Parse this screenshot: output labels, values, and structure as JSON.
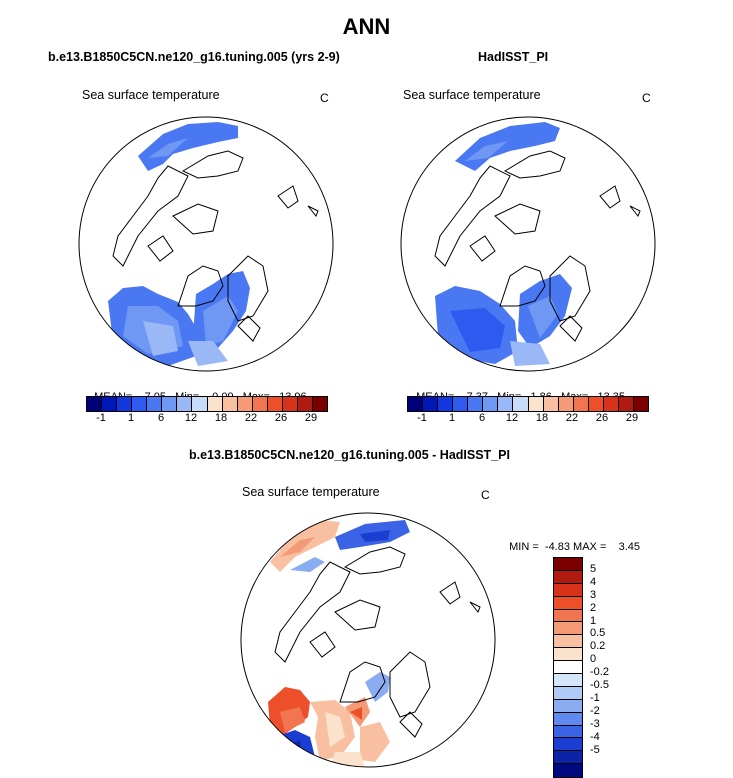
{
  "title": "ANN",
  "panels": [
    {
      "subtitle": "b.e13.B1850C5CN.ne120_g16.tuning.005 (yrs 2-9)",
      "field": "Sea surface temperature",
      "units": "C",
      "stats": {
        "mean_label": "MEAN=",
        "mean": "7.05",
        "min_label": "Min=",
        "min": "-0.09",
        "max_label": "Max=",
        "max": "13.96"
      }
    },
    {
      "subtitle": "HadISST_PI",
      "field": "Sea surface temperature",
      "units": "C",
      "stats": {
        "mean_label": "MEAN=",
        "mean": "7.37",
        "min_label": "Min=",
        "min": "1.86",
        "max_label": "Max=",
        "max": "13.35"
      }
    },
    {
      "subtitle": "b.e13.B1850C5CN.ne120_g16.tuning.005 - HadISST_PI",
      "field": "Sea surface temperature",
      "units": "C",
      "stats": {
        "min_label": "MIN =",
        "min": "-4.83",
        "max_label": "MAX =",
        "max": "3.45"
      }
    }
  ],
  "colorbar_abs": {
    "colors": [
      "#00007a",
      "#0018b8",
      "#1438e0",
      "#2f5af0",
      "#4a78f2",
      "#6f97f4",
      "#9ab8f6",
      "#c6dcf9",
      "#fbe2cc",
      "#f8c0a0",
      "#f59a76",
      "#f27552",
      "#ec4f2a",
      "#d8331a",
      "#b01a10",
      "#7a0000"
    ],
    "tick_labels": [
      "-1",
      "1",
      "6",
      "12",
      "18",
      "22",
      "26",
      "29"
    ]
  },
  "colorbar_diff": {
    "colors": [
      "#7a0000",
      "#b01a10",
      "#d8331a",
      "#ec4f2a",
      "#f27552",
      "#f59a76",
      "#f8c0a0",
      "#fbe2cc",
      "#ffffff",
      "#d6e6fa",
      "#b0cbf6",
      "#8aadf2",
      "#5f89ee",
      "#3a63e6",
      "#1c3ed0",
      "#0c22a8",
      "#000880"
    ],
    "tick_labels": [
      "5",
      "4",
      "3",
      "2",
      "1",
      "0.5",
      "0.2",
      "0",
      "-0.2",
      "-0.5",
      "-1",
      "-2",
      "-3",
      "-4",
      "-5"
    ]
  }
}
